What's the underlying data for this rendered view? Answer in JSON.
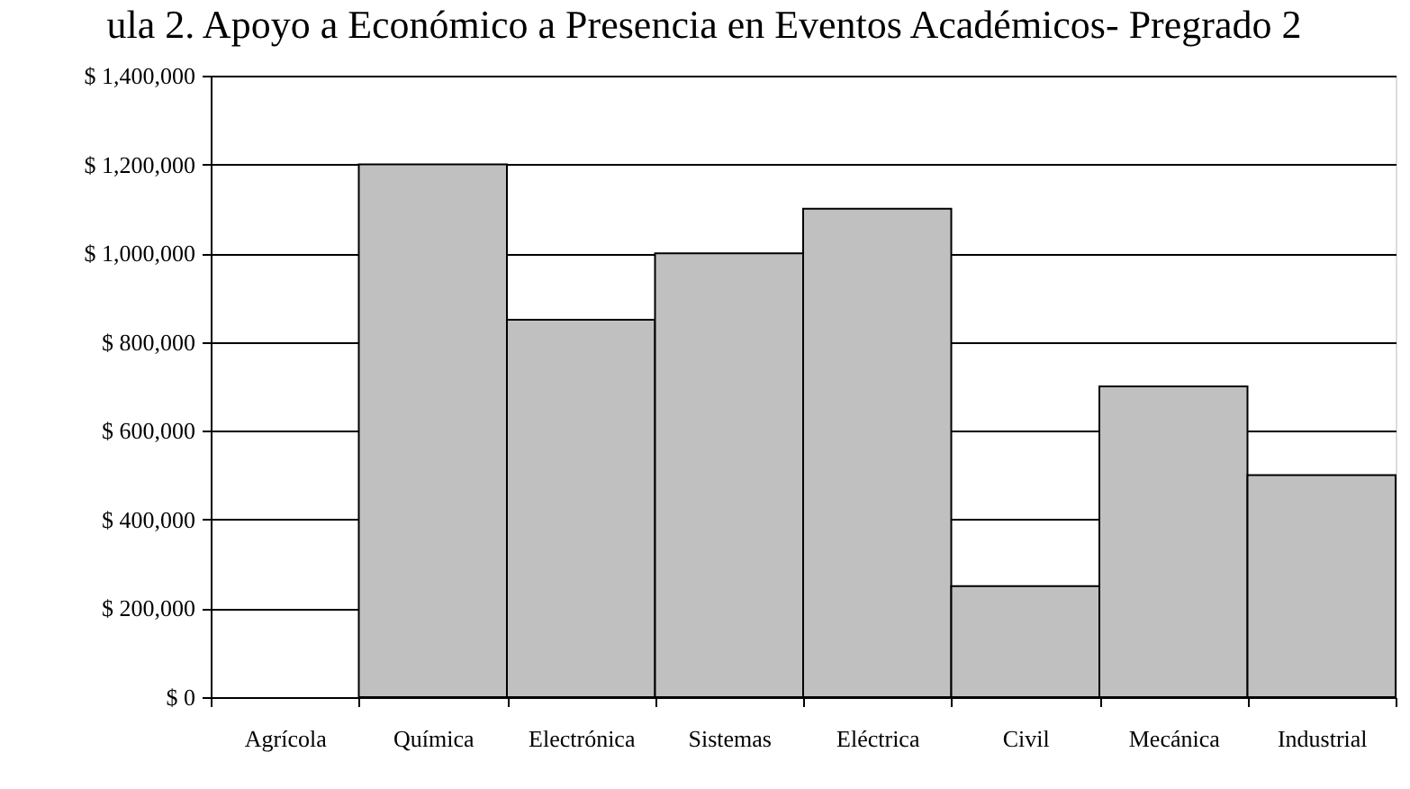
{
  "chart_data": {
    "type": "bar",
    "title": "ula 2. Apoyo a Económico a Presencia en Eventos Académicos- Pregrado 2",
    "categories": [
      "Agrícola",
      "Química",
      "Electrónica",
      "Sistemas",
      "Eléctrica",
      "Civil",
      "Mecánica",
      "Industrial"
    ],
    "values": [
      null,
      1200000,
      850000,
      1000000,
      1100000,
      250000,
      700000,
      500000
    ],
    "color": "#c0c0c0",
    "ylim": [
      0,
      1400000
    ],
    "yticks": [
      {
        "value": 0,
        "label": "$ 0"
      },
      {
        "value": 200000,
        "label": "$ 200,000"
      },
      {
        "value": 400000,
        "label": "$ 400,000"
      },
      {
        "value": 600000,
        "label": "$ 600,000"
      },
      {
        "value": 800000,
        "label": "$ 800,000"
      },
      {
        "value": 1000000,
        "label": "$ 1,000,000"
      },
      {
        "value": 1200000,
        "label": "$ 1,200,000"
      },
      {
        "value": 1400000,
        "label": "$ 1,400,000"
      }
    ],
    "grid": "y"
  }
}
